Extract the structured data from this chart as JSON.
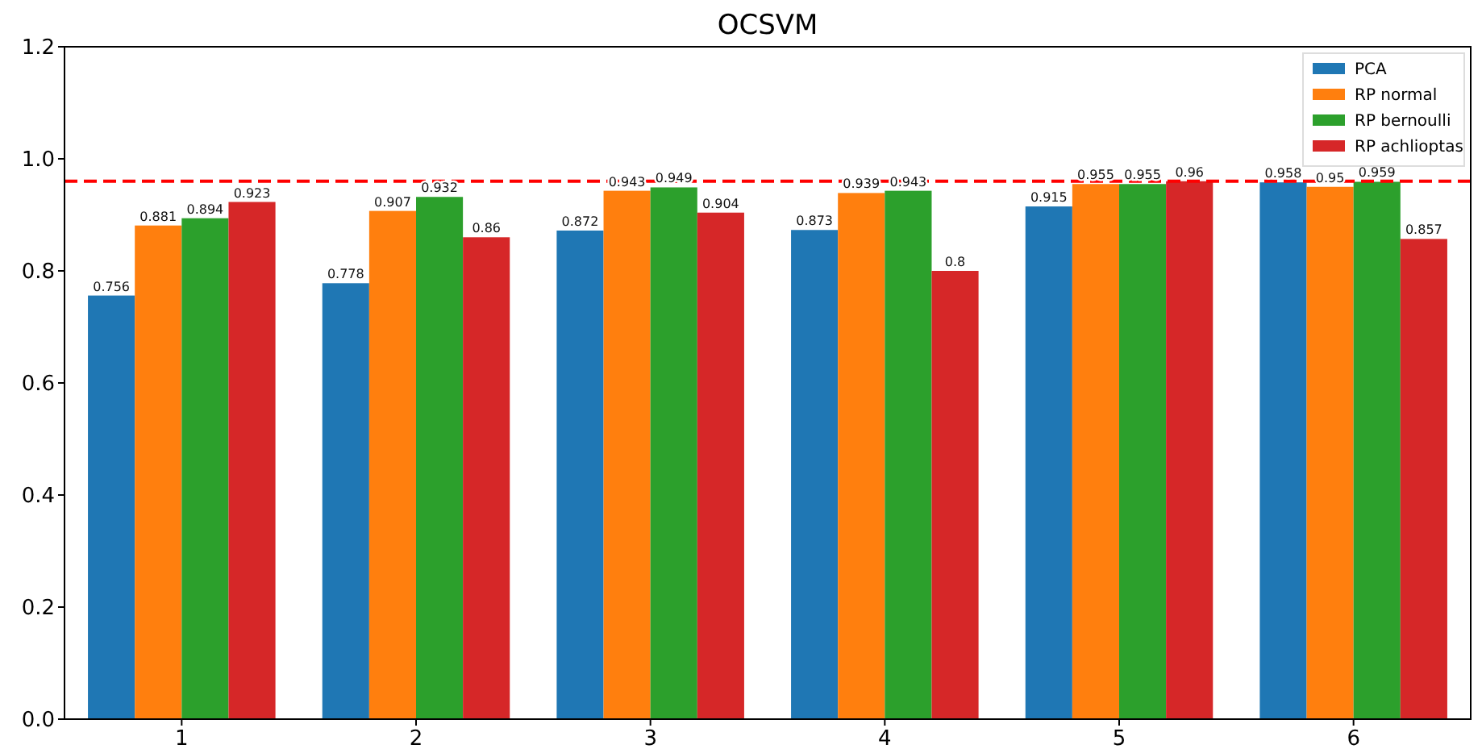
{
  "chart_data": {
    "type": "bar",
    "title": "OCSVM",
    "categories": [
      "1",
      "2",
      "3",
      "4",
      "5",
      "6"
    ],
    "series": [
      {
        "name": "PCA",
        "color": "#1f77b4",
        "values": [
          0.756,
          0.778,
          0.872,
          0.873,
          0.915,
          0.958
        ]
      },
      {
        "name": "RP normal",
        "color": "#ff7f0e",
        "values": [
          0.881,
          0.907,
          0.943,
          0.939,
          0.955,
          0.95
        ]
      },
      {
        "name": "RP bernoulli",
        "color": "#2ca02c",
        "values": [
          0.894,
          0.932,
          0.949,
          0.943,
          0.955,
          0.959
        ]
      },
      {
        "name": "RP achlioptas",
        "color": "#d62728",
        "values": [
          0.923,
          0.86,
          0.904,
          0.8,
          0.96,
          0.857
        ]
      }
    ],
    "ylim": [
      0,
      1.2
    ],
    "yticks": [
      {
        "value": 0,
        "label": "0.0"
      },
      {
        "value": 0.2,
        "label": "0.2"
      },
      {
        "value": 0.4,
        "label": "0.4"
      },
      {
        "value": 0.6,
        "label": "0.6"
      },
      {
        "value": 0.8,
        "label": "0.8"
      },
      {
        "value": 1,
        "label": "1.0"
      },
      {
        "value": 1.2,
        "label": "1.2"
      }
    ],
    "ref_lines": [
      {
        "axis": "y",
        "value": 0.96,
        "color": "#ff0000",
        "line_style": "dashed"
      }
    ],
    "data_labels": true,
    "legend": "top right",
    "grid": false
  }
}
